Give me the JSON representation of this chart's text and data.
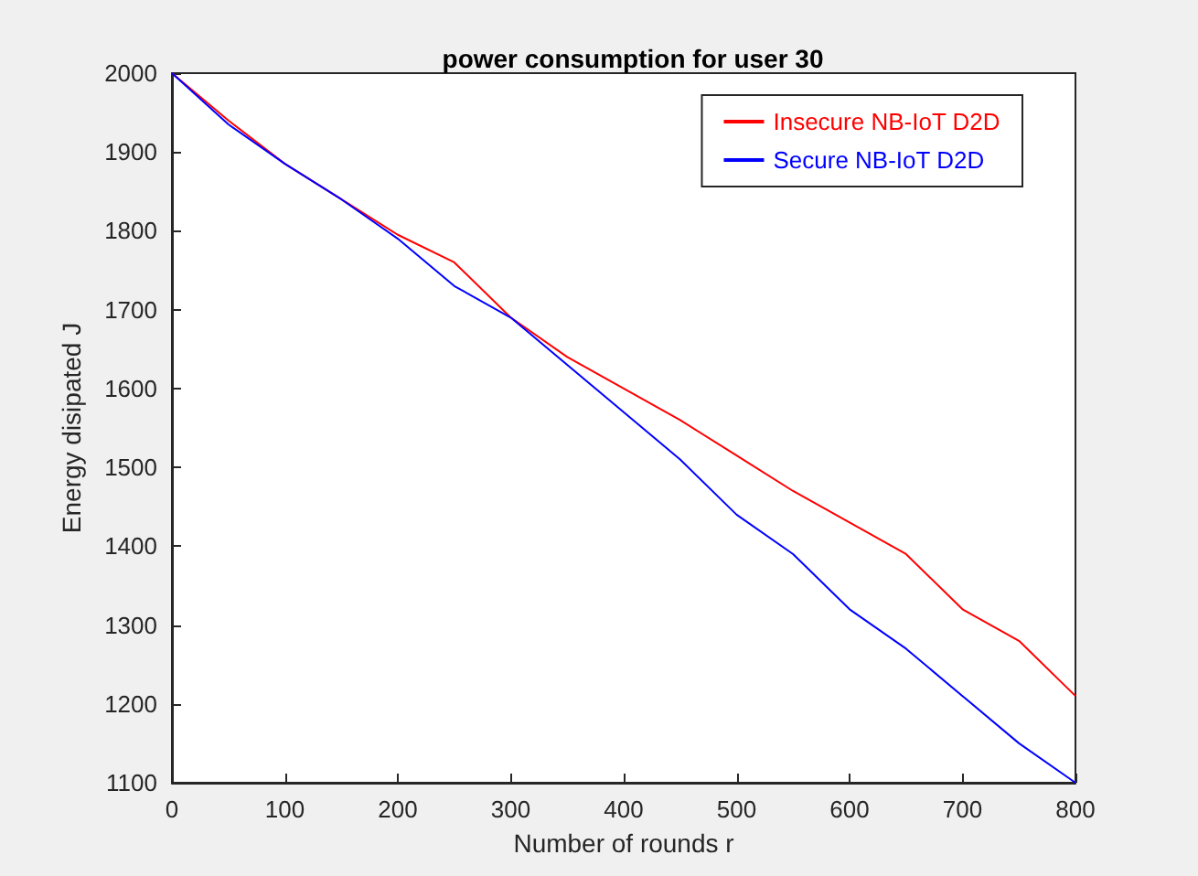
{
  "chart_data": {
    "type": "line",
    "title": "power consumption for user 30",
    "xlabel": "Number of rounds r",
    "ylabel": "Energy disipated J",
    "x": [
      0,
      50,
      100,
      150,
      200,
      250,
      300,
      350,
      400,
      450,
      500,
      550,
      600,
      650,
      700,
      750,
      800
    ],
    "series": [
      {
        "name": "Insecure NB-IoT D2D",
        "color": "#ff0000",
        "values": [
          2000,
          1940,
          1885,
          1840,
          1795,
          1760,
          1690,
          1640,
          1600,
          1560,
          1515,
          1470,
          1430,
          1390,
          1320,
          1280,
          1210
        ]
      },
      {
        "name": "Secure NB-IoT D2D",
        "color": "#0000ff",
        "values": [
          2000,
          1935,
          1885,
          1840,
          1790,
          1730,
          1690,
          1630,
          1570,
          1510,
          1440,
          1390,
          1320,
          1270,
          1210,
          1150,
          1100
        ]
      }
    ],
    "xlim": [
      0,
      800
    ],
    "xticks": [
      0,
      100,
      200,
      300,
      400,
      500,
      600,
      700,
      800
    ],
    "ylim": [
      1100,
      2000
    ],
    "yticks": [
      1100,
      1200,
      1300,
      1400,
      1500,
      1600,
      1700,
      1800,
      1900,
      2000
    ],
    "grid": false,
    "legend": "top right",
    "marker": "none",
    "line_style": "solid"
  }
}
